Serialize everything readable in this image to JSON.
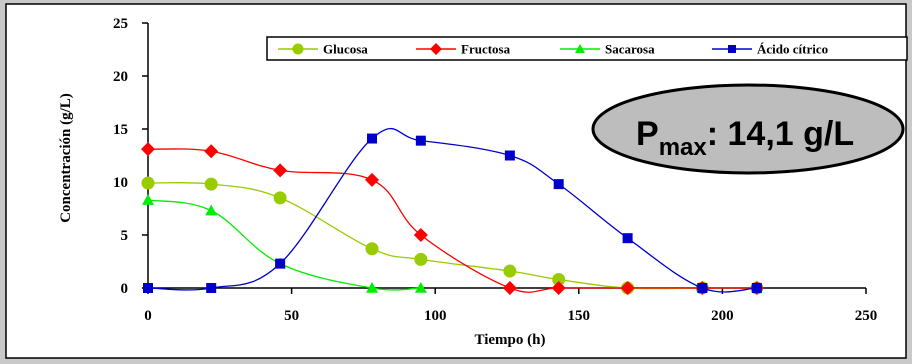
{
  "chart_data": {
    "type": "line",
    "xlabel": "Tiempo (h)",
    "ylabel": "Concentración (g/L)",
    "xlim": [
      0,
      250
    ],
    "ylim": [
      0,
      25
    ],
    "xticks": [
      0,
      50,
      100,
      150,
      200,
      250
    ],
    "yticks": [
      0,
      5,
      10,
      15,
      20,
      25
    ],
    "grid": false,
    "legend_position": "top-right",
    "annotation": {
      "label": "P",
      "subscript": "max",
      "value": ": 14,1 g/L"
    },
    "series": [
      {
        "name": "Glucosa",
        "color": "#99cc00",
        "marker": "circle",
        "x": [
          0,
          22,
          46,
          78,
          95,
          126,
          143,
          167,
          193,
          212
        ],
        "y": [
          9.9,
          9.8,
          8.5,
          3.7,
          2.7,
          1.6,
          0.8,
          0.0,
          0.0,
          0.0
        ]
      },
      {
        "name": "Fructosa",
        "color": "#ff0000",
        "marker": "diamond",
        "x": [
          0,
          22,
          46,
          78,
          95,
          126,
          143,
          167,
          193,
          212
        ],
        "y": [
          13.1,
          12.9,
          11.1,
          10.2,
          5.0,
          0.0,
          0.0,
          0.0,
          0.0,
          0.0
        ]
      },
      {
        "name": "Sacarosa",
        "color": "#00ee00",
        "marker": "triangle",
        "x": [
          0,
          22,
          46,
          78,
          95
        ],
        "y": [
          8.3,
          7.3,
          2.3,
          0.0,
          0.0
        ]
      },
      {
        "name": "Ácido cítrico",
        "color": "#0000cc",
        "marker": "square",
        "x": [
          0,
          22,
          46,
          78,
          95,
          126,
          143,
          167,
          193,
          212
        ],
        "y": [
          0.0,
          0.0,
          2.3,
          14.1,
          13.9,
          12.5,
          9.8,
          4.7,
          0.0,
          0.0
        ]
      }
    ]
  }
}
